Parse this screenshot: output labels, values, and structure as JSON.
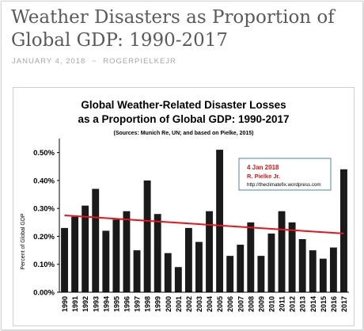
{
  "post": {
    "title": "Weather Disasters as Proportion of Global GDP: 1990-2017",
    "date": "JANUARY 4, 2018",
    "separator": "~",
    "author": "ROGERPIELKEJR"
  },
  "chart_data": {
    "type": "bar",
    "title_line1": "Global Weather-Related Disaster Losses",
    "title_line2": "as a Proportion of Global GDP: 1990-2017",
    "subtitle": "(Sources: Munich Re, UN; and based on Pielke, 2015)",
    "ylabel": "Percent of Global GDP",
    "xlabel": "",
    "ylim": [
      0,
      0.55
    ],
    "yticks": [
      "0.00%",
      "0.10%",
      "0.20%",
      "0.30%",
      "0.40%",
      "0.50%"
    ],
    "ytick_values": [
      0,
      0.1,
      0.2,
      0.3,
      0.4,
      0.5
    ],
    "grid": false,
    "categories": [
      "1990",
      "1991",
      "1992",
      "1993",
      "1994",
      "1995",
      "1996",
      "1997",
      "1998",
      "1999",
      "2000",
      "2001",
      "2002",
      "2003",
      "2004",
      "2005",
      "2006",
      "2007",
      "2008",
      "2009",
      "2010",
      "2011",
      "2012",
      "2013",
      "2014",
      "2015",
      "2016",
      "2017"
    ],
    "values": [
      0.23,
      0.27,
      0.31,
      0.37,
      0.22,
      0.26,
      0.29,
      0.15,
      0.4,
      0.28,
      0.14,
      0.09,
      0.23,
      0.18,
      0.29,
      0.51,
      0.13,
      0.17,
      0.25,
      0.13,
      0.21,
      0.29,
      0.25,
      0.19,
      0.15,
      0.12,
      0.16,
      0.44
    ],
    "trendline": {
      "start": 0.275,
      "end": 0.21,
      "color": "#e8131b"
    },
    "bar_color": "#1a1a1a",
    "annotation": {
      "line1": "4 Jan 2018",
      "line2": "R. Pielke Jr.",
      "line3": "http://theclimatefix.wordpress.com",
      "color": "#e8131b",
      "border_color": "#4f81bd"
    }
  }
}
